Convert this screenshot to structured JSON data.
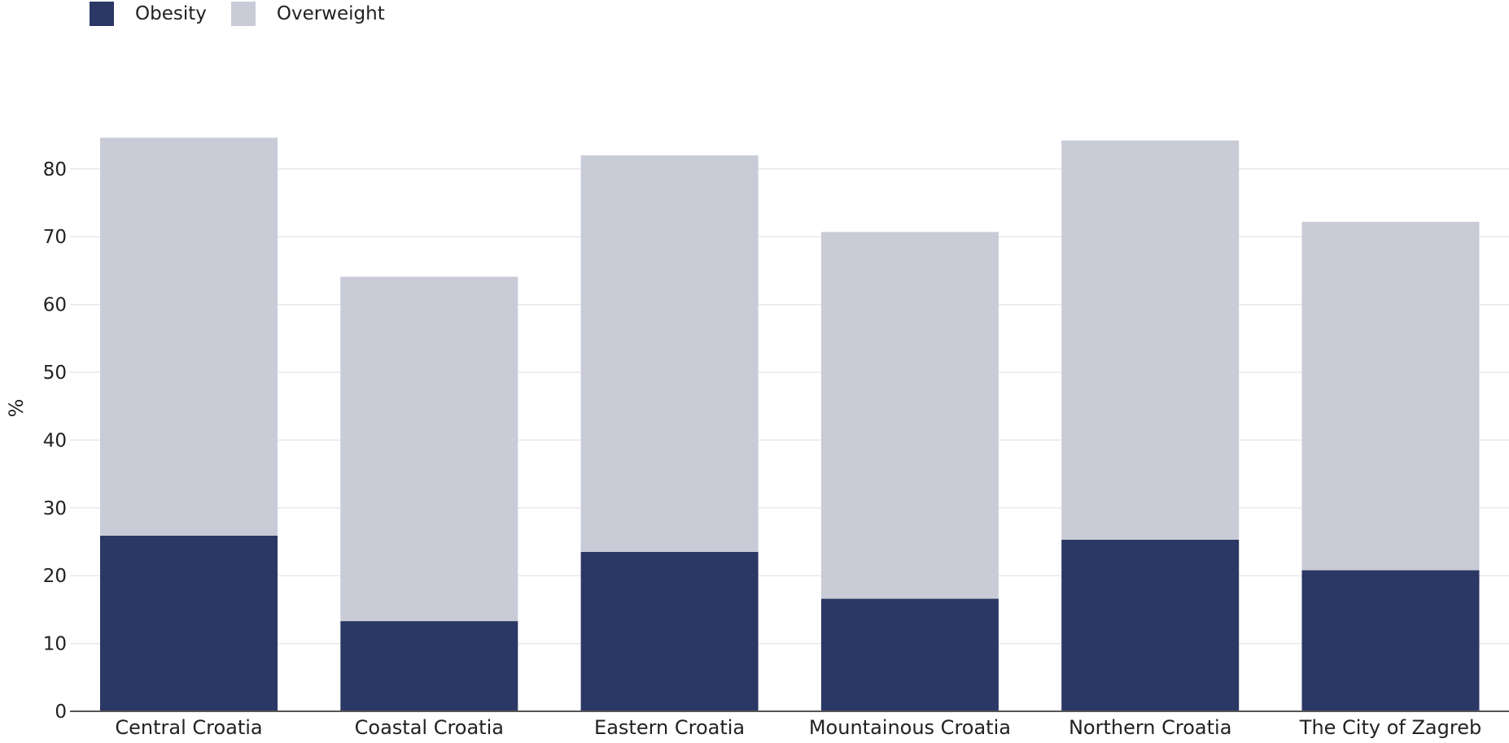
{
  "chart_data": {
    "type": "bar",
    "stacked": true,
    "categories": [
      "Central Croatia",
      "Coastal Croatia",
      "Eastern Croatia",
      "Mountainous Croatia",
      "Northern Croatia",
      "The City of Zagreb"
    ],
    "series": [
      {
        "name": "Obesity",
        "color": "#2b3764",
        "values": [
          25.9,
          13.3,
          23.5,
          16.6,
          25.3,
          20.8
        ]
      },
      {
        "name": "Overweight",
        "color": "#c9cbd7",
        "values": [
          58.7,
          50.8,
          58.5,
          54.1,
          58.9,
          51.4
        ]
      }
    ],
    "ylabel": "%",
    "xlabel": "",
    "title": "",
    "ylim": [
      0,
      85
    ],
    "yticks": [
      0,
      10,
      20,
      30,
      40,
      50,
      60,
      70,
      80
    ],
    "grid": true,
    "legend_position": "top-left"
  }
}
